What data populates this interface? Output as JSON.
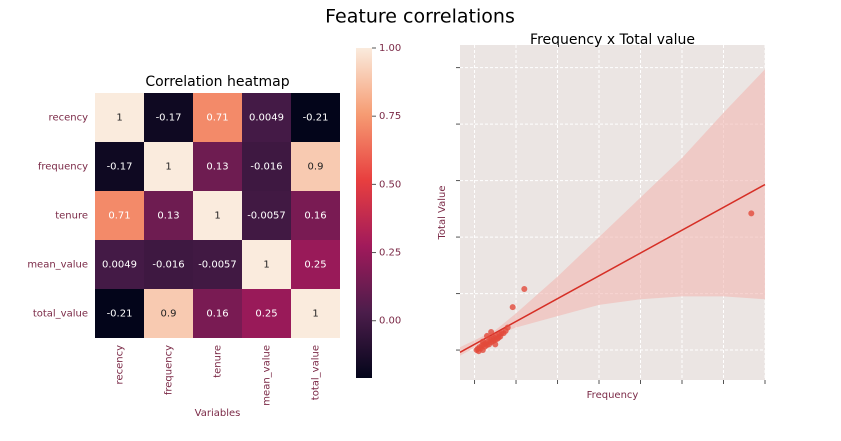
{
  "title": "Feature correlations",
  "chart_data": [
    {
      "type": "heatmap",
      "title": "Correlation heatmap",
      "xlabel": "Variables",
      "categories": [
        "recency",
        "frequency",
        "tenure",
        "mean_value",
        "total_value"
      ],
      "values": [
        [
          1,
          -0.17,
          0.71,
          0.0049,
          -0.21
        ],
        [
          -0.17,
          1,
          0.13,
          -0.016,
          0.9
        ],
        [
          0.71,
          0.13,
          1,
          -0.0057,
          0.16
        ],
        [
          0.0049,
          -0.016,
          -0.0057,
          1,
          0.25
        ],
        [
          -0.21,
          0.9,
          0.16,
          0.25,
          1
        ]
      ],
      "clim": [
        -0.21,
        1
      ],
      "cticks": [
        {
          "value": 0,
          "label": "0.00"
        },
        {
          "value": 0.25,
          "label": "0.25"
        },
        {
          "value": 0.5,
          "label": "0.50"
        },
        {
          "value": 0.75,
          "label": "0.75"
        },
        {
          "value": 1,
          "label": "1.00"
        }
      ],
      "colorscale": [
        "#03051a",
        "#4c1d4b",
        "#a11a5b",
        "#e83f3f",
        "#f69c73",
        "#faebdd"
      ]
    },
    {
      "type": "scatter",
      "title": "Frequency x Total value",
      "xlabel": "Frequency",
      "ylabel": "Total Value",
      "x": [
        0.05,
        0.08,
        0.1,
        0.12,
        0.15,
        0.18,
        0.2,
        0.22,
        0.25,
        0.27,
        0.3,
        0.32,
        0.35,
        0.38,
        0.4,
        0.42,
        0.45,
        0.47,
        0.5,
        0.52,
        0.55,
        0.58,
        0.6,
        0.62,
        0.65,
        0.7,
        0.75,
        0.8,
        0.3,
        0.4,
        0.2,
        0.5,
        0.92,
        1.2,
        6.67
      ],
      "y": [
        0.0,
        0.02,
        -0.02,
        0.05,
        0.03,
        0.08,
        0.0,
        0.1,
        0.06,
        0.12,
        0.09,
        0.15,
        0.1,
        0.18,
        0.14,
        0.2,
        0.16,
        0.22,
        0.18,
        0.25,
        0.2,
        0.22,
        0.28,
        0.24,
        0.3,
        0.3,
        0.34,
        0.4,
        0.25,
        0.32,
        0.15,
        0.1,
        0.76,
        1.08,
        2.42
      ],
      "color": "#e24a3b",
      "regression": {
        "x": [
          -0.35,
          7
        ],
        "y": [
          -0.04,
          2.93
        ],
        "color": "#d62f26"
      },
      "band": {
        "x": [
          -0.35,
          0.5,
          1,
          2,
          3,
          4,
          5,
          6,
          7
        ],
        "lower": [
          -0.1,
          0.25,
          0.4,
          0.6,
          0.8,
          0.9,
          0.95,
          0.95,
          0.9
        ],
        "upper": [
          0.05,
          0.35,
          0.65,
          1.3,
          2.0,
          2.7,
          3.4,
          4.2,
          4.97
        ],
        "color": "#f2b8b2"
      },
      "xlim": [
        -0.35,
        7
      ],
      "ylim": [
        -0.53,
        5.4
      ],
      "xticks": [
        0,
        1,
        2,
        3,
        4,
        5,
        6,
        7
      ],
      "yticks": [
        0,
        1,
        2,
        3,
        4,
        5
      ],
      "grid": true,
      "background": "#ebe5e3"
    }
  ]
}
